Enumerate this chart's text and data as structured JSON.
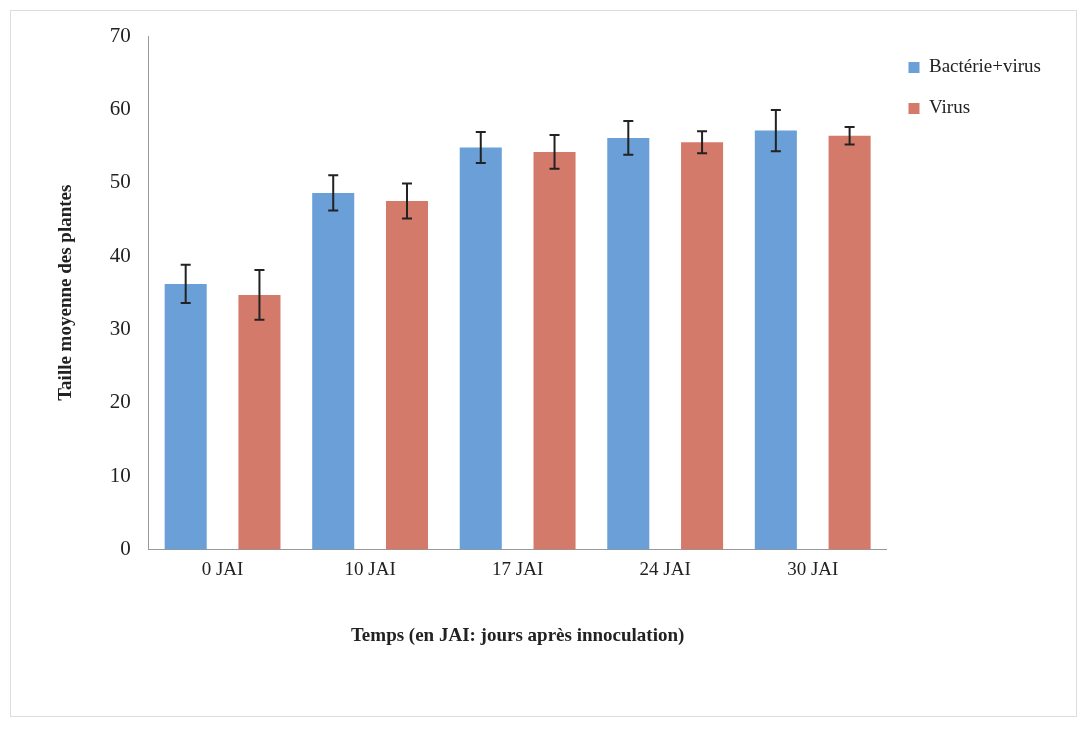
{
  "chart_data": {
    "type": "bar",
    "categories": [
      "0 JAI",
      "10 JAI",
      "17 JAI",
      "24 JAI",
      "30 JAI"
    ],
    "xlabel": "Temps (en JAI: jours après innoculation)",
    "ylabel": "Taille moyenne des plantes",
    "ylim": [
      0,
      70
    ],
    "yticks": [
      0,
      10,
      20,
      30,
      40,
      50,
      60,
      70
    ],
    "grid": false,
    "legend": "right",
    "series": [
      {
        "name": "Bactérie+virus",
        "color": "#6a9fd8",
        "values": [
          36.2,
          48.6,
          54.8,
          56.1,
          57.1
        ],
        "errors": [
          2.6,
          2.4,
          2.1,
          2.3,
          2.8
        ]
      },
      {
        "name": "Virus",
        "color": "#d47a6a",
        "values": [
          34.7,
          47.5,
          54.2,
          55.5,
          56.4
        ],
        "errors": [
          3.4,
          2.4,
          2.3,
          1.5,
          1.2
        ]
      }
    ]
  }
}
